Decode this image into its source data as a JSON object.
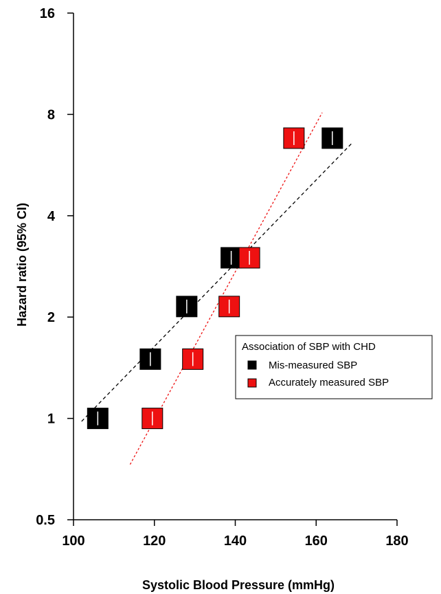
{
  "chart_data": {
    "type": "scatter",
    "xlabel": "Systolic Blood Pressure (mmHg)",
    "ylabel": "Hazard ratio (95% CI)",
    "xlim": [
      100,
      180
    ],
    "ylim": [
      0.5,
      16
    ],
    "yscale": "log2",
    "xticks": [
      100,
      120,
      140,
      160,
      180
    ],
    "xtick_labels": [
      "100",
      "120",
      "140",
      "160",
      "180"
    ],
    "yticks": [
      0.5,
      1,
      2,
      4,
      8,
      16
    ],
    "ytick_labels": [
      "0.5",
      "1",
      "2",
      "4",
      "8",
      "16"
    ],
    "grid": false,
    "legend": {
      "title": "Association of SBP with CHD",
      "placement": "right",
      "entries": [
        "Mis-measured SBP",
        "Accurately measured SBP"
      ]
    },
    "series": [
      {
        "name": "Mis-measured SBP",
        "color": "#000000",
        "marker": "square",
        "points": [
          {
            "x": 106,
            "y": 1.0
          },
          {
            "x": 119,
            "y": 1.5
          },
          {
            "x": 128,
            "y": 2.15
          },
          {
            "x": 139,
            "y": 3.0
          },
          {
            "x": 164,
            "y": 6.8
          }
        ],
        "trend": {
          "x": [
            102,
            169
          ],
          "y": [
            0.98,
            6.6
          ],
          "style": "dashed"
        }
      },
      {
        "name": "Accurately measured SBP",
        "color": "#ee1111",
        "marker": "square",
        "points": [
          {
            "x": 119.5,
            "y": 1.0
          },
          {
            "x": 129.5,
            "y": 1.5
          },
          {
            "x": 138.5,
            "y": 2.15
          },
          {
            "x": 143.5,
            "y": 3.0
          },
          {
            "x": 154.5,
            "y": 6.8
          }
        ],
        "trend": {
          "x": [
            114,
            161.5
          ],
          "y": [
            0.73,
            8.1
          ],
          "style": "dotted"
        }
      }
    ]
  }
}
